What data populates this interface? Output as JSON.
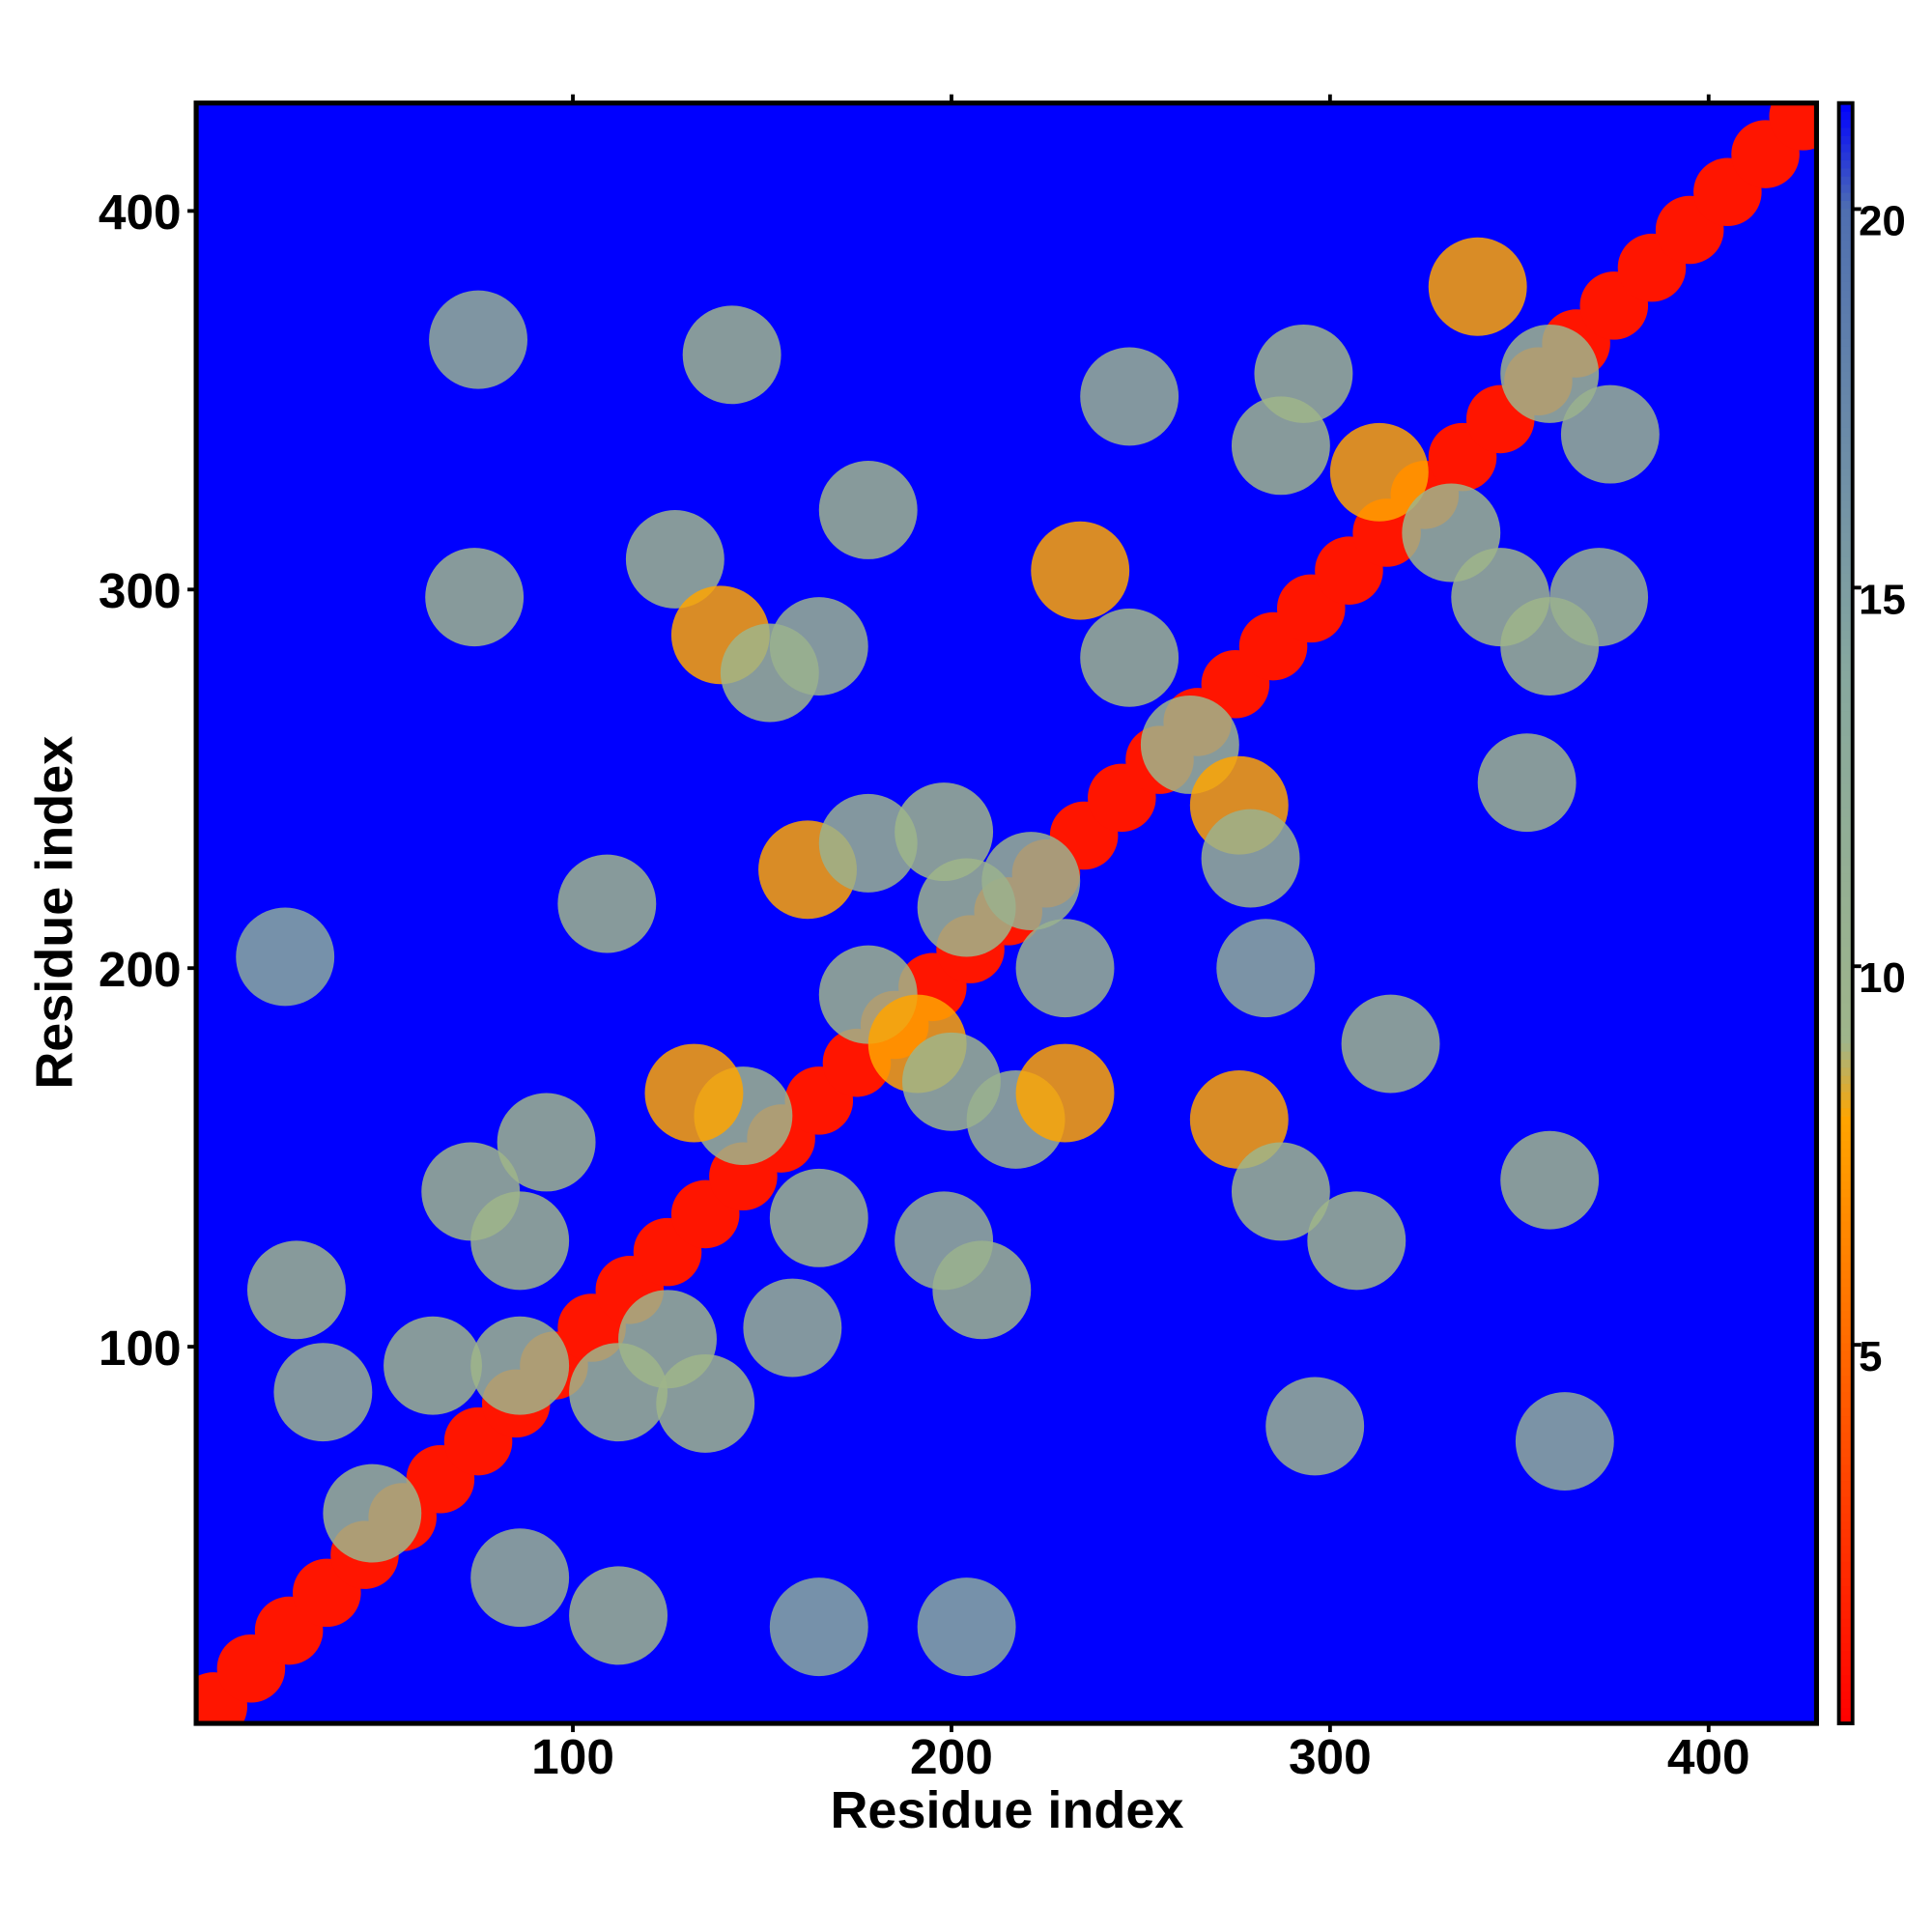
{
  "chart_data": {
    "type": "heatmap",
    "x_label": "Residue index",
    "y_label": "Residue index",
    "xlim": [
      0.5,
      428.5
    ],
    "ylim": [
      0.5,
      428.5
    ],
    "xticks": [
      100,
      200,
      300,
      400
    ],
    "yticks": [
      100,
      200,
      300,
      400
    ],
    "clim": [
      0,
      21.4
    ],
    "cticks": [
      5,
      10,
      15,
      20
    ],
    "background_color": "#0000ff",
    "colorscale": [
      [
        0,
        "#ff0000"
      ],
      [
        5,
        "#ff6a00"
      ],
      [
        8,
        "#ffa500"
      ],
      [
        9,
        "#9fb58a"
      ],
      [
        14,
        "#86a79f"
      ],
      [
        20,
        "#4f6fb0"
      ],
      [
        21.4,
        "#0000ff"
      ]
    ],
    "series": [
      {
        "x": [
          5,
          15,
          25,
          35,
          45,
          55,
          65,
          75,
          85,
          95,
          105,
          115,
          125,
          135,
          145,
          155,
          165,
          175,
          185,
          195,
          205,
          215,
          225,
          235,
          245,
          255,
          265,
          275,
          285,
          295,
          305,
          315,
          325,
          335,
          345,
          355,
          365,
          375,
          385,
          395,
          405,
          415,
          425
        ],
        "y": [
          5,
          15,
          25,
          35,
          45,
          55,
          65,
          75,
          85,
          95,
          105,
          115,
          125,
          135,
          145,
          155,
          165,
          175,
          185,
          195,
          205,
          215,
          225,
          235,
          245,
          255,
          265,
          275,
          285,
          295,
          305,
          315,
          325,
          335,
          345,
          355,
          365,
          375,
          385,
          395,
          405,
          415,
          425
        ],
        "values": [
          1,
          1,
          1,
          1,
          1,
          1,
          1,
          1,
          1,
          1,
          1,
          1,
          1,
          1,
          1,
          1,
          1,
          1,
          1,
          1,
          1,
          1,
          1,
          1,
          1,
          1,
          1,
          1,
          1,
          1,
          1,
          1,
          1,
          1,
          1,
          1,
          1,
          1,
          1,
          1,
          1,
          1,
          1
        ]
      },
      {
        "x": [
          75,
          142,
          74,
          127,
          139,
          152,
          165,
          178,
          162,
          178,
          109,
          198,
          204,
          221,
          230,
          178,
          191,
          200,
          217,
          230,
          234,
          247,
          263,
          276,
          279,
          247,
          293,
          287,
          313,
          339,
          358,
          374,
          332,
          345,
          358,
          371,
          352,
          316,
          276,
          287,
          307,
          358,
          296,
          362,
          208,
          198,
          165,
          158,
          135,
          125,
          145,
          132,
          93,
          73,
          86,
          27,
          34,
          63,
          86,
          112,
          47,
          86,
          112,
          24,
          204,
          165,
          283
        ],
        "y": [
          366,
          362,
          298,
          308,
          288,
          278,
          285,
          321,
          226,
          233,
          217,
          236,
          216,
          223,
          200,
          193,
          180,
          170,
          160,
          167,
          305,
          282,
          259,
          243,
          229,
          351,
          357,
          338,
          331,
          380,
          357,
          341,
          315,
          298,
          285,
          298,
          249,
          180,
          160,
          141,
          128,
          144,
          79,
          75,
          115,
          128,
          134,
          105,
          85,
          102,
          161,
          167,
          154,
          141,
          128,
          115,
          88,
          95,
          95,
          88,
          56,
          39,
          29,
          203,
          26,
          26,
          200
        ],
        "values": [
          11,
          9,
          9,
          9,
          8,
          9,
          10,
          9,
          8,
          10,
          9,
          9,
          9,
          10,
          10,
          9,
          8,
          9,
          10,
          8,
          8,
          9,
          9,
          8,
          10,
          10,
          9,
          9,
          8,
          8,
          9,
          10,
          9,
          9,
          9,
          10,
          9,
          9,
          8,
          9,
          9,
          9,
          10,
          12,
          9,
          10,
          9,
          10,
          9,
          9,
          9,
          8,
          9,
          9,
          9,
          9,
          10,
          9,
          9,
          9,
          9,
          10,
          9,
          13,
          13,
          13,
          12
        ]
      }
    ]
  }
}
